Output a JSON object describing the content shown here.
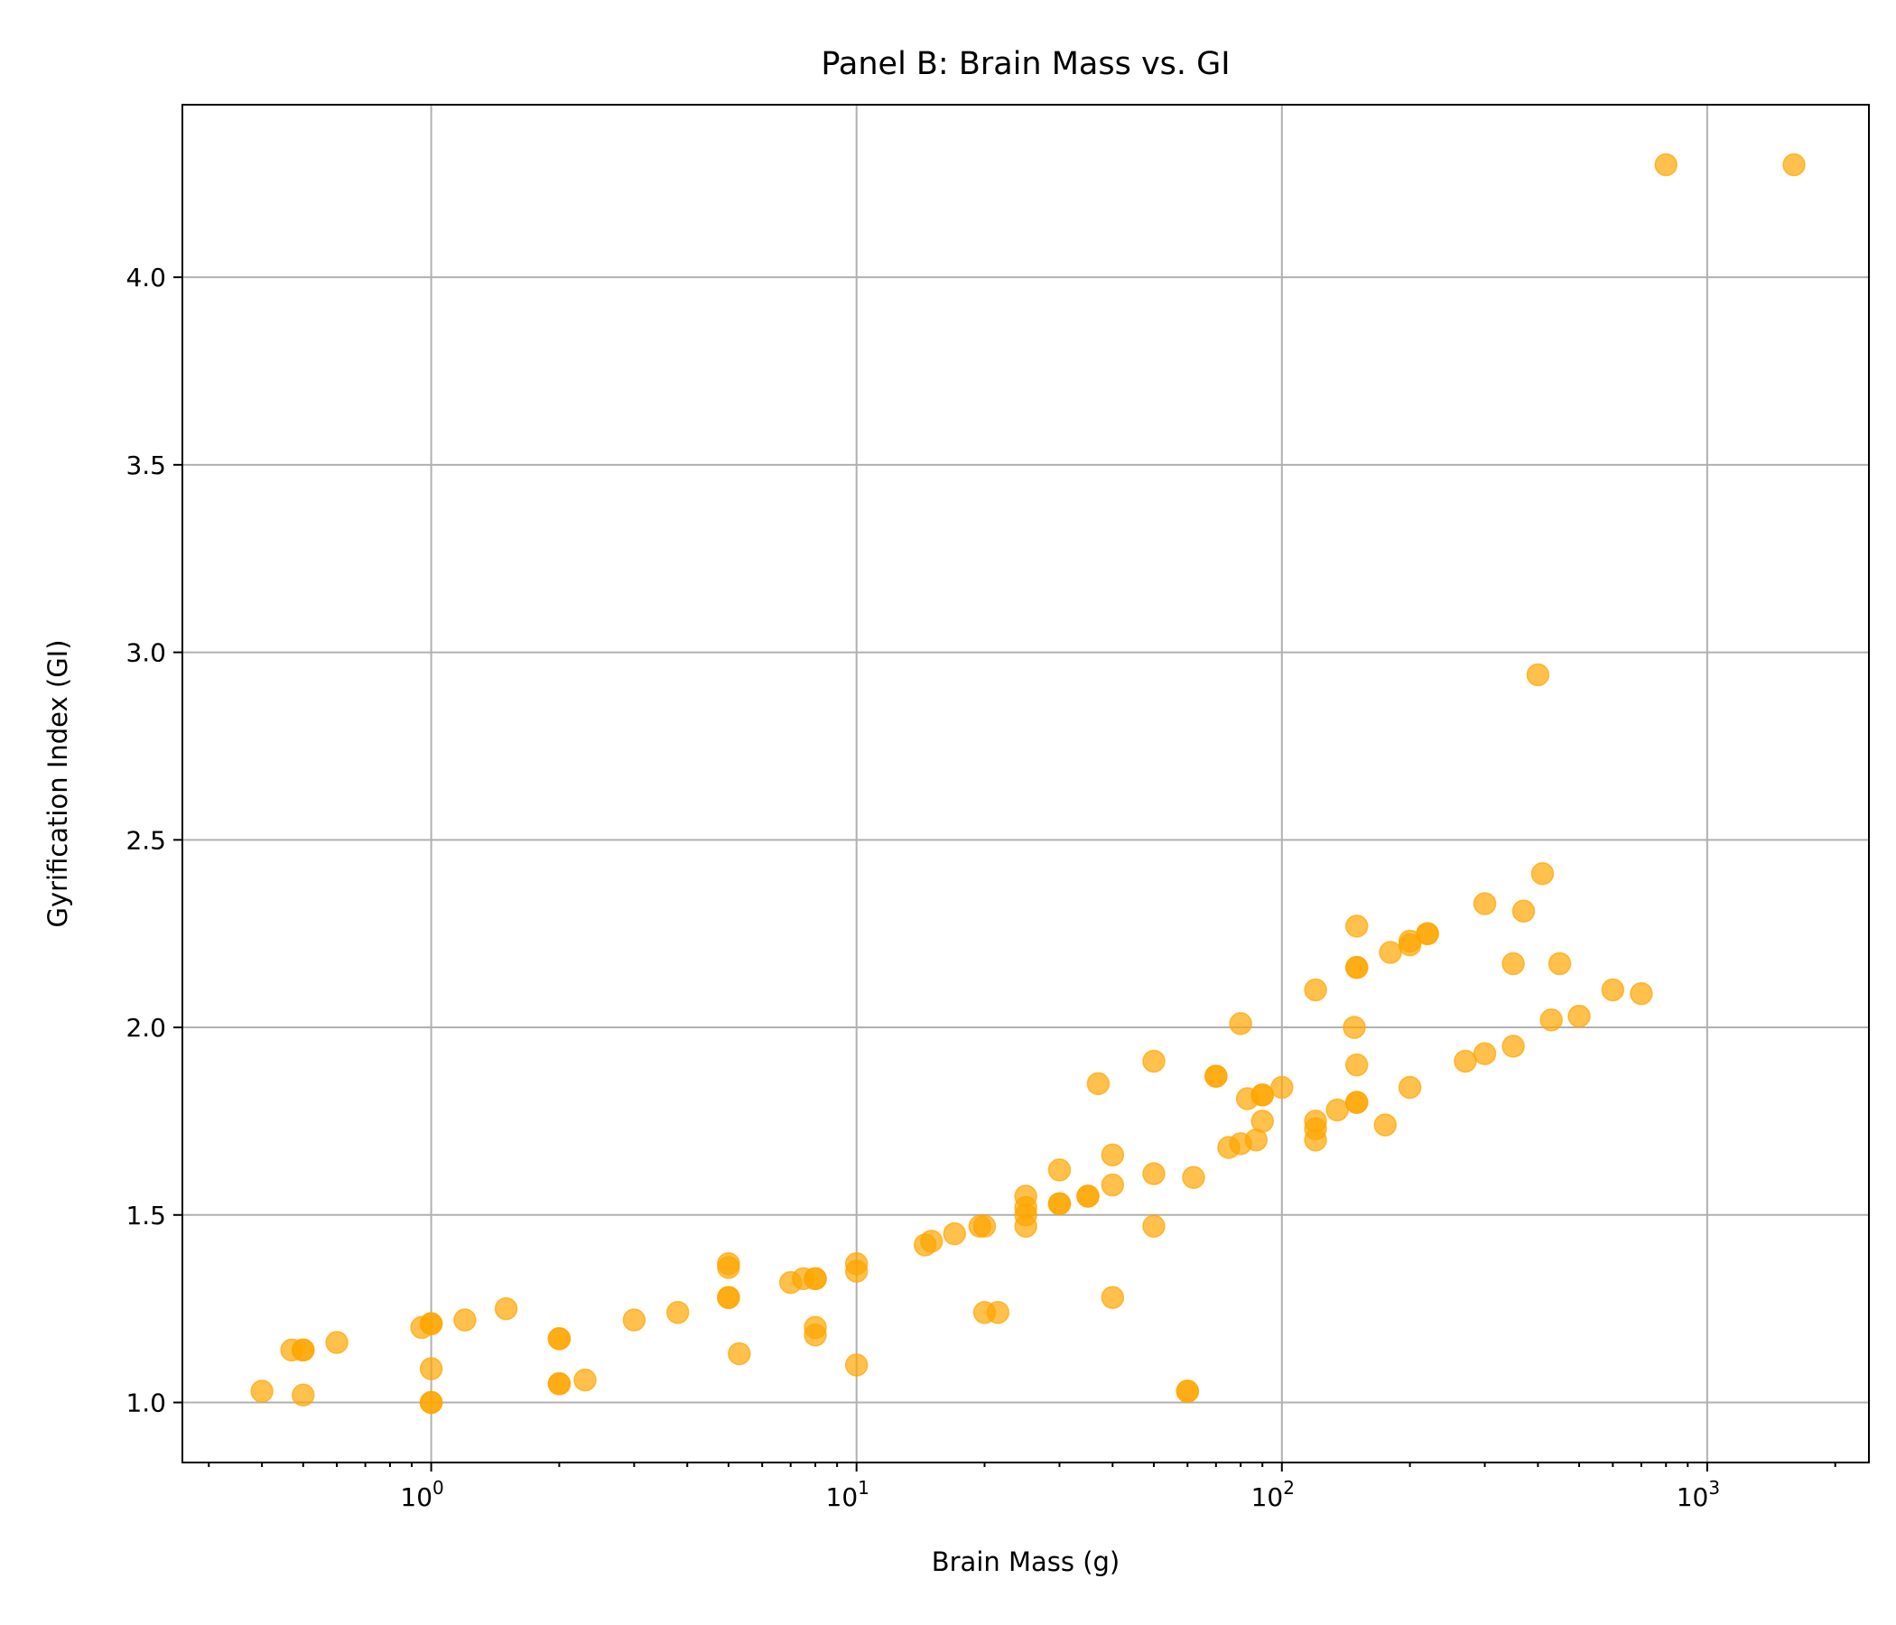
{
  "chart_data": {
    "type": "scatter",
    "title": "Panel B: Brain Mass vs. GI",
    "xlabel": "Brain Mass (g)",
    "ylabel": "Gyrification Index (GI)",
    "xscale": "log",
    "xlim": [
      0.26,
      2400
    ],
    "ylim": [
      0.84,
      4.46
    ],
    "x_ticks": [
      {
        "value": 1,
        "base": "10",
        "exp": "0"
      },
      {
        "value": 10,
        "base": "10",
        "exp": "1"
      },
      {
        "value": 100,
        "base": "10",
        "exp": "2"
      },
      {
        "value": 1000,
        "base": "10",
        "exp": "3"
      }
    ],
    "y_ticks": [
      1.0,
      1.5,
      2.0,
      2.5,
      3.0,
      3.5,
      4.0
    ],
    "y_tick_labels": [
      "1.0",
      "1.5",
      "2.0",
      "2.5",
      "3.0",
      "3.5",
      "4.0"
    ],
    "grid": true,
    "marker_color": "#FFA500",
    "marker_alpha": 0.7,
    "points": [
      {
        "x": 0.4,
        "y": 1.03
      },
      {
        "x": 0.47,
        "y": 1.14
      },
      {
        "x": 0.5,
        "y": 1.14
      },
      {
        "x": 0.5,
        "y": 1.14
      },
      {
        "x": 0.5,
        "y": 1.02
      },
      {
        "x": 0.6,
        "y": 1.16
      },
      {
        "x": 0.95,
        "y": 1.2
      },
      {
        "x": 1.0,
        "y": 1.21
      },
      {
        "x": 1.0,
        "y": 1.21
      },
      {
        "x": 1.0,
        "y": 1.09
      },
      {
        "x": 1.0,
        "y": 1.0
      },
      {
        "x": 1.0,
        "y": 1.0
      },
      {
        "x": 1.2,
        "y": 1.22
      },
      {
        "x": 1.5,
        "y": 1.25
      },
      {
        "x": 2.0,
        "y": 1.17
      },
      {
        "x": 2.0,
        "y": 1.17
      },
      {
        "x": 2.0,
        "y": 1.05
      },
      {
        "x": 2.0,
        "y": 1.05
      },
      {
        "x": 2.3,
        "y": 1.06
      },
      {
        "x": 3.0,
        "y": 1.22
      },
      {
        "x": 3.8,
        "y": 1.24
      },
      {
        "x": 5.0,
        "y": 1.37
      },
      {
        "x": 5.0,
        "y": 1.36
      },
      {
        "x": 5.0,
        "y": 1.28
      },
      {
        "x": 5.0,
        "y": 1.28
      },
      {
        "x": 5.3,
        "y": 1.13
      },
      {
        "x": 7.0,
        "y": 1.32
      },
      {
        "x": 7.5,
        "y": 1.33
      },
      {
        "x": 8.0,
        "y": 1.33
      },
      {
        "x": 8.0,
        "y": 1.33
      },
      {
        "x": 8.0,
        "y": 1.2
      },
      {
        "x": 8.0,
        "y": 1.18
      },
      {
        "x": 10.0,
        "y": 1.37
      },
      {
        "x": 10.0,
        "y": 1.35
      },
      {
        "x": 10.0,
        "y": 1.1
      },
      {
        "x": 14.5,
        "y": 1.42
      },
      {
        "x": 15.0,
        "y": 1.43
      },
      {
        "x": 17.0,
        "y": 1.45
      },
      {
        "x": 19.5,
        "y": 1.47
      },
      {
        "x": 20.0,
        "y": 1.47
      },
      {
        "x": 20.0,
        "y": 1.24
      },
      {
        "x": 21.5,
        "y": 1.24
      },
      {
        "x": 25.0,
        "y": 1.55
      },
      {
        "x": 25.0,
        "y": 1.52
      },
      {
        "x": 25.0,
        "y": 1.5
      },
      {
        "x": 25.0,
        "y": 1.47
      },
      {
        "x": 30.0,
        "y": 1.62
      },
      {
        "x": 30.0,
        "y": 1.53
      },
      {
        "x": 30.0,
        "y": 1.53
      },
      {
        "x": 35.0,
        "y": 1.55
      },
      {
        "x": 35.0,
        "y": 1.55
      },
      {
        "x": 37.0,
        "y": 1.85
      },
      {
        "x": 40.0,
        "y": 1.66
      },
      {
        "x": 40.0,
        "y": 1.58
      },
      {
        "x": 40.0,
        "y": 1.28
      },
      {
        "x": 50.0,
        "y": 1.91
      },
      {
        "x": 50.0,
        "y": 1.61
      },
      {
        "x": 50.0,
        "y": 1.47
      },
      {
        "x": 60.0,
        "y": 1.03
      },
      {
        "x": 60.0,
        "y": 1.03
      },
      {
        "x": 62.0,
        "y": 1.6
      },
      {
        "x": 70.0,
        "y": 1.87
      },
      {
        "x": 70.0,
        "y": 1.87
      },
      {
        "x": 75.0,
        "y": 1.68
      },
      {
        "x": 80.0,
        "y": 2.01
      },
      {
        "x": 80.0,
        "y": 1.69
      },
      {
        "x": 83.0,
        "y": 1.81
      },
      {
        "x": 87.0,
        "y": 1.7
      },
      {
        "x": 90.0,
        "y": 1.82
      },
      {
        "x": 90.0,
        "y": 1.82
      },
      {
        "x": 90.0,
        "y": 1.75
      },
      {
        "x": 100.0,
        "y": 1.84
      },
      {
        "x": 120.0,
        "y": 2.1
      },
      {
        "x": 120.0,
        "y": 1.75
      },
      {
        "x": 120.0,
        "y": 1.73
      },
      {
        "x": 120.0,
        "y": 1.7
      },
      {
        "x": 135.0,
        "y": 1.78
      },
      {
        "x": 148.0,
        "y": 2.0
      },
      {
        "x": 150.0,
        "y": 2.27
      },
      {
        "x": 150.0,
        "y": 2.16
      },
      {
        "x": 150.0,
        "y": 2.16
      },
      {
        "x": 150.0,
        "y": 1.9
      },
      {
        "x": 150.0,
        "y": 1.8
      },
      {
        "x": 150.0,
        "y": 1.8
      },
      {
        "x": 175.0,
        "y": 1.74
      },
      {
        "x": 180.0,
        "y": 2.2
      },
      {
        "x": 200.0,
        "y": 2.22
      },
      {
        "x": 200.0,
        "y": 2.23
      },
      {
        "x": 200.0,
        "y": 1.84
      },
      {
        "x": 220.0,
        "y": 2.25
      },
      {
        "x": 220.0,
        "y": 2.25
      },
      {
        "x": 270.0,
        "y": 1.91
      },
      {
        "x": 300.0,
        "y": 2.33
      },
      {
        "x": 300.0,
        "y": 1.93
      },
      {
        "x": 350.0,
        "y": 2.17
      },
      {
        "x": 350.0,
        "y": 1.95
      },
      {
        "x": 370.0,
        "y": 2.31
      },
      {
        "x": 400.0,
        "y": 2.94
      },
      {
        "x": 410.0,
        "y": 2.41
      },
      {
        "x": 430.0,
        "y": 2.02
      },
      {
        "x": 450.0,
        "y": 2.17
      },
      {
        "x": 500.0,
        "y": 2.03
      },
      {
        "x": 600.0,
        "y": 2.1
      },
      {
        "x": 700.0,
        "y": 2.09
      },
      {
        "x": 800.0,
        "y": 4.3
      },
      {
        "x": 1600.0,
        "y": 4.3
      }
    ]
  }
}
